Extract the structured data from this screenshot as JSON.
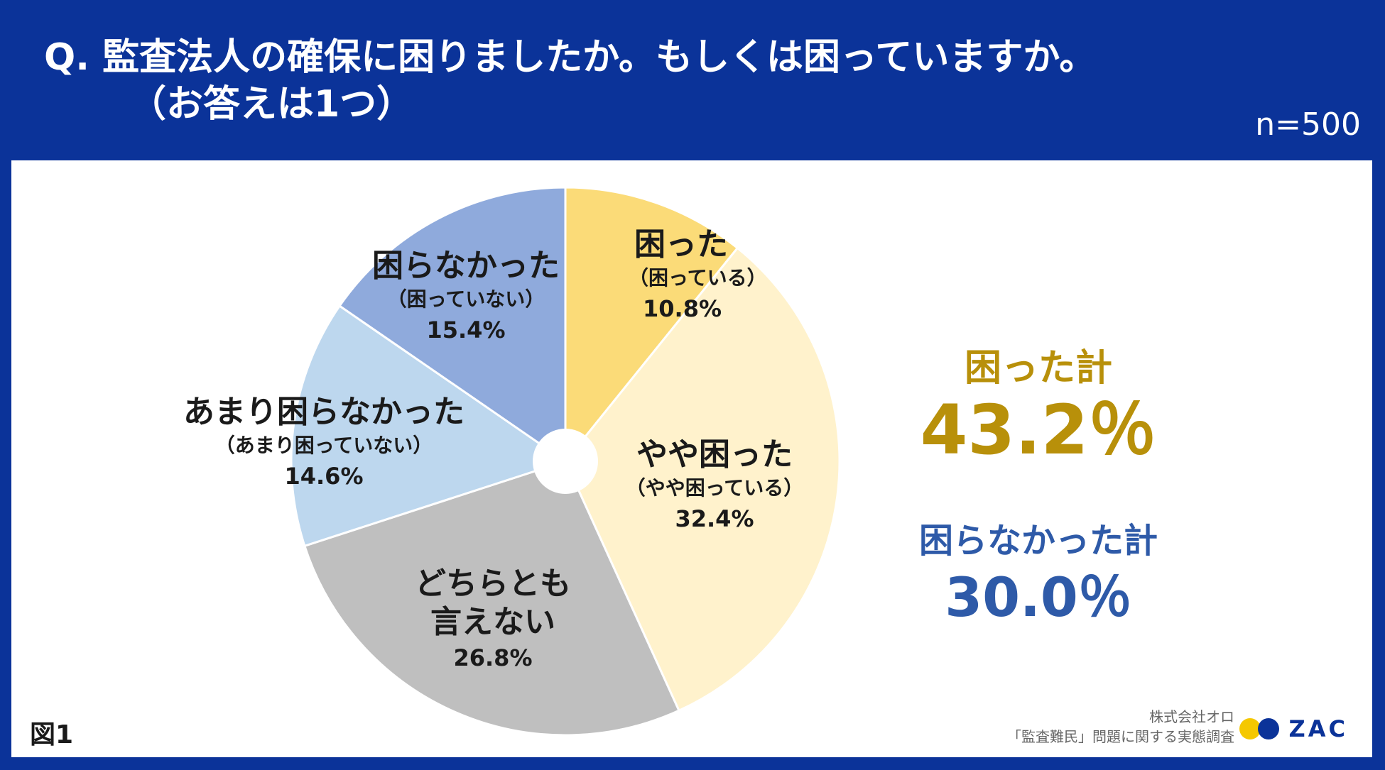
{
  "header": {
    "question_line1": "Q.  監査法人の確保に困りましたか。もしくは困っていますか。",
    "question_line2": "（お答えは1つ）",
    "sample_size": "n=500"
  },
  "chart_data": {
    "type": "pie",
    "title": "監査法人の確保に困りましたか。もしくは困っていますか。",
    "categories": [
      "困った",
      "やや困った",
      "どちらとも言えない",
      "あまり困らなかった",
      "困らなかった"
    ],
    "values": [
      10.8,
      32.4,
      26.8,
      14.6,
      15.4
    ],
    "slices": [
      {
        "label": "困った",
        "sub": "（困っている）",
        "pct": "10.8%",
        "value": 10.8,
        "color": "#fbdb78"
      },
      {
        "label": "やや困った",
        "sub": "（やや困っている）",
        "pct": "32.4%",
        "value": 32.4,
        "color": "#fff2cc"
      },
      {
        "label": "どちらとも\n言えない",
        "sub": "",
        "pct": "26.8%",
        "value": 26.8,
        "color": "#bfbfbf"
      },
      {
        "label": "あまり困らなかった",
        "sub": "（あまり困っていない）",
        "pct": "14.6%",
        "value": 14.6,
        "color": "#bdd7ee"
      },
      {
        "label": "困らなかった",
        "sub": "（困っていない）",
        "pct": "15.4%",
        "value": 15.4,
        "color": "#8faadc"
      }
    ],
    "start": "12 o'clock, clockwise",
    "donut_hole": true
  },
  "totals": {
    "trouble_label": "困った計",
    "trouble_value": "43.2％",
    "no_trouble_label": "困らなかった計",
    "no_trouble_value": "30.0％",
    "trouble_color": "#b8900a",
    "no_trouble_color": "#2e5aa8"
  },
  "footer": {
    "figure": "図1",
    "company": "株式会社オロ",
    "survey": "「監査難民」問題に関する実態調査",
    "logo_text": "ZAC"
  }
}
